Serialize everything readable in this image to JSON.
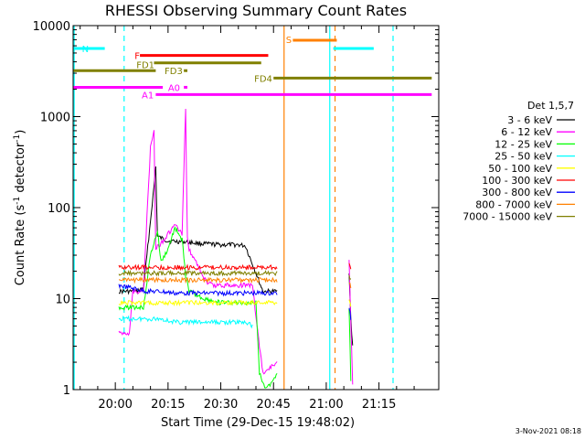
{
  "chart_data": {
    "type": "line",
    "title": "RHESSI Observing Summary Count Rates",
    "xlabel": "Start Time (29-Dec-15 19:48:02)",
    "ylabel_main": "Count Rate (s",
    "ylabel_sup1": "-1",
    "ylabel_mid": " detector",
    "ylabel_sup2": "-1",
    "ylabel_end": ")",
    "x_start_minute": 1188,
    "xlim": [
      1188,
      1292
    ],
    "ylim": [
      1,
      10000
    ],
    "yscale": "log",
    "x_ticks": [
      {
        "label": "20:00",
        "minute": 1200
      },
      {
        "label": "20:15",
        "minute": 1215
      },
      {
        "label": "20:30",
        "minute": 1230
      },
      {
        "label": "20:45",
        "minute": 1245
      },
      {
        "label": "21:00",
        "minute": 1260
      },
      {
        "label": "21:15",
        "minute": 1275
      }
    ],
    "y_ticks": [
      {
        "label": "1",
        "value": 1
      },
      {
        "label": "10",
        "value": 10
      },
      {
        "label": "100",
        "value": 100
      },
      {
        "label": "1000",
        "value": 1000
      },
      {
        "label": "10000",
        "value": 10000
      }
    ],
    "legend_title": "Det 1,5,7",
    "legend_position": "right",
    "series": [
      {
        "name": "3 - 6 keV",
        "color": "#000000",
        "points": [
          [
            1201,
            12
          ],
          [
            1206,
            12
          ],
          [
            1208,
            13
          ],
          [
            1209,
            30
          ],
          [
            1211,
            170
          ],
          [
            1211.5,
            280
          ],
          [
            1212,
            48
          ],
          [
            1215,
            43
          ],
          [
            1220,
            42
          ],
          [
            1225,
            40
          ],
          [
            1230,
            39
          ],
          [
            1235,
            39
          ],
          [
            1237,
            38
          ],
          [
            1242,
            12
          ],
          [
            1246,
            12
          ],
          [
            1247,
            null
          ],
          [
            1266,
            null
          ],
          [
            1266.5,
            20
          ],
          [
            1267,
            6
          ],
          [
            1267.5,
            3
          ]
        ]
      },
      {
        "name": "6 - 12 keV",
        "color": "#ff00ff",
        "points": [
          [
            1201,
            4.2
          ],
          [
            1204,
            4.2
          ],
          [
            1205,
            12
          ],
          [
            1206,
            12
          ],
          [
            1208,
            12
          ],
          [
            1209,
            80
          ],
          [
            1210,
            450
          ],
          [
            1211,
            750
          ],
          [
            1211.5,
            35
          ],
          [
            1214,
            45
          ],
          [
            1217,
            65
          ],
          [
            1219,
            50
          ],
          [
            1220,
            1250
          ],
          [
            1220.5,
            45
          ],
          [
            1221,
            35
          ],
          [
            1223,
            25
          ],
          [
            1226,
            15
          ],
          [
            1228,
            14
          ],
          [
            1231,
            14
          ],
          [
            1235,
            14
          ],
          [
            1239,
            14
          ],
          [
            1241,
            3
          ],
          [
            1242,
            1.5
          ],
          [
            1246,
            2
          ],
          [
            1247,
            null
          ],
          [
            1266,
            null
          ],
          [
            1266.5,
            28
          ],
          [
            1267,
            5
          ],
          [
            1267.5,
            1.2
          ]
        ]
      },
      {
        "name": "12 - 25 keV",
        "color": "#00ff00",
        "points": [
          [
            1201,
            8
          ],
          [
            1205,
            8
          ],
          [
            1208,
            8
          ],
          [
            1210,
            30
          ],
          [
            1212,
            55
          ],
          [
            1213,
            25
          ],
          [
            1215,
            35
          ],
          [
            1217,
            60
          ],
          [
            1219,
            45
          ],
          [
            1220,
            18
          ],
          [
            1221,
            12
          ],
          [
            1225,
            10
          ],
          [
            1230,
            9
          ],
          [
            1236,
            9
          ],
          [
            1240,
            9
          ],
          [
            1241,
            1.5
          ],
          [
            1243,
            1
          ],
          [
            1246,
            1.5
          ],
          [
            1247,
            null
          ],
          [
            1266,
            null
          ],
          [
            1266.5,
            8
          ],
          [
            1267,
            1.3
          ]
        ]
      },
      {
        "name": "25 - 50 keV",
        "color": "#00ffff",
        "points": [
          [
            1201,
            6
          ],
          [
            1205,
            6
          ],
          [
            1209,
            6
          ],
          [
            1213,
            6
          ],
          [
            1217,
            5.5
          ],
          [
            1221,
            5.5
          ],
          [
            1225,
            5.5
          ],
          [
            1229,
            5.5
          ],
          [
            1233,
            5.5
          ],
          [
            1237,
            5.5
          ],
          [
            1239,
            5
          ]
        ]
      },
      {
        "name": "50 - 100 keV",
        "color": "#ffff00",
        "points": [
          [
            1201,
            9
          ],
          [
            1205,
            9
          ],
          [
            1209,
            9
          ],
          [
            1213,
            9
          ],
          [
            1217,
            9
          ],
          [
            1221,
            9
          ],
          [
            1225,
            9
          ],
          [
            1229,
            9
          ],
          [
            1233,
            9
          ],
          [
            1237,
            9
          ],
          [
            1241,
            9
          ],
          [
            1246,
            9
          ],
          [
            1247,
            null
          ],
          [
            1266,
            null
          ],
          [
            1266.5,
            10
          ],
          [
            1267,
            8
          ]
        ]
      },
      {
        "name": "100 - 300 keV",
        "color": "#ff0000",
        "points": [
          [
            1201,
            22
          ],
          [
            1205,
            22
          ],
          [
            1209,
            22
          ],
          [
            1213,
            22
          ],
          [
            1217,
            22
          ],
          [
            1221,
            22
          ],
          [
            1225,
            22
          ],
          [
            1229,
            22
          ],
          [
            1233,
            22
          ],
          [
            1237,
            22
          ],
          [
            1241,
            22
          ],
          [
            1246,
            22
          ],
          [
            1247,
            null
          ],
          [
            1266,
            null
          ],
          [
            1266.5,
            25
          ],
          [
            1267,
            20
          ]
        ]
      },
      {
        "name": "300 - 800 keV",
        "color": "#0000ff",
        "points": [
          [
            1201,
            14
          ],
          [
            1205,
            13
          ],
          [
            1209,
            12
          ],
          [
            1213,
            12
          ],
          [
            1217,
            11.5
          ],
          [
            1221,
            11.5
          ],
          [
            1225,
            11.5
          ],
          [
            1229,
            11.5
          ],
          [
            1233,
            11.5
          ],
          [
            1237,
            11.5
          ],
          [
            1241,
            11.5
          ],
          [
            1246,
            11.5
          ],
          [
            1247,
            null
          ],
          [
            1266,
            null
          ],
          [
            1266.5,
            8
          ],
          [
            1267,
            6
          ]
        ]
      },
      {
        "name": "800 - 7000 keV",
        "color": "#ff8000",
        "points": [
          [
            1201,
            16
          ],
          [
            1205,
            16
          ],
          [
            1209,
            16
          ],
          [
            1213,
            16
          ],
          [
            1217,
            16
          ],
          [
            1221,
            16
          ],
          [
            1225,
            16
          ],
          [
            1229,
            16
          ],
          [
            1233,
            16
          ],
          [
            1237,
            16
          ],
          [
            1241,
            16
          ],
          [
            1246,
            16
          ],
          [
            1247,
            null
          ],
          [
            1266,
            null
          ],
          [
            1266.5,
            15
          ],
          [
            1267,
            13
          ]
        ]
      },
      {
        "name": "7000 - 15000 keV",
        "color": "#808000",
        "points": [
          [
            1201,
            19
          ],
          [
            1205,
            19
          ],
          [
            1209,
            19
          ],
          [
            1213,
            19
          ],
          [
            1217,
            19
          ],
          [
            1221,
            19
          ],
          [
            1225,
            19
          ],
          [
            1229,
            19
          ],
          [
            1233,
            19
          ],
          [
            1237,
            19
          ],
          [
            1241,
            19
          ],
          [
            1246,
            19
          ],
          [
            1247,
            null
          ],
          [
            1266,
            null
          ],
          [
            1266.5,
            18
          ],
          [
            1267,
            16
          ]
        ]
      }
    ],
    "flag_bars": [
      {
        "label": "N",
        "color": "#00ffff",
        "y": 5600,
        "segments": [
          [
            1188,
            1197
          ],
          [
            1262,
            1273.5
          ]
        ]
      },
      {
        "label": "F",
        "color": "#ff0000",
        "y": 4700,
        "segments": [
          [
            1207,
            1243.5
          ]
        ]
      },
      {
        "label": "FD1",
        "color": "#808000",
        "y": 3900,
        "segments": [
          [
            1211,
            1241.5
          ]
        ]
      },
      {
        "label": "FD3",
        "color": "#808000",
        "y": 3200,
        "segments": [
          [
            1188,
            1211.5
          ],
          [
            1219.5,
            1220.5
          ]
        ]
      },
      {
        "label": "FD4",
        "color": "#808000",
        "y": 2650,
        "segments": [
          [
            1245,
            1290
          ]
        ]
      },
      {
        "label": "A0",
        "color": "#ff00ff",
        "y": 2100,
        "segments": [
          [
            1188,
            1213.5
          ],
          [
            1219.5,
            1220.5
          ]
        ]
      },
      {
        "label": "A1",
        "color": "#ff00ff",
        "y": 1750,
        "segments": [
          [
            1211.5,
            1290
          ]
        ]
      },
      {
        "label": "S",
        "color": "#ff8000",
        "y": 6900,
        "segments": [
          [
            1250.5,
            1263
          ]
        ]
      }
    ],
    "vertical_lines": [
      {
        "minute": 1188.3,
        "color": "#00ffff",
        "style": "solid"
      },
      {
        "minute": 1202.5,
        "color": "#00ffff",
        "style": "dashed"
      },
      {
        "minute": 1248,
        "color": "#ff8000",
        "style": "solid"
      },
      {
        "minute": 1261,
        "color": "#00ffff",
        "style": "solid"
      },
      {
        "minute": 1262.5,
        "color": "#ff8000",
        "style": "dashed"
      },
      {
        "minute": 1279,
        "color": "#00ffff",
        "style": "dashed"
      }
    ],
    "timestamp": "3-Nov-2021 08:18"
  }
}
